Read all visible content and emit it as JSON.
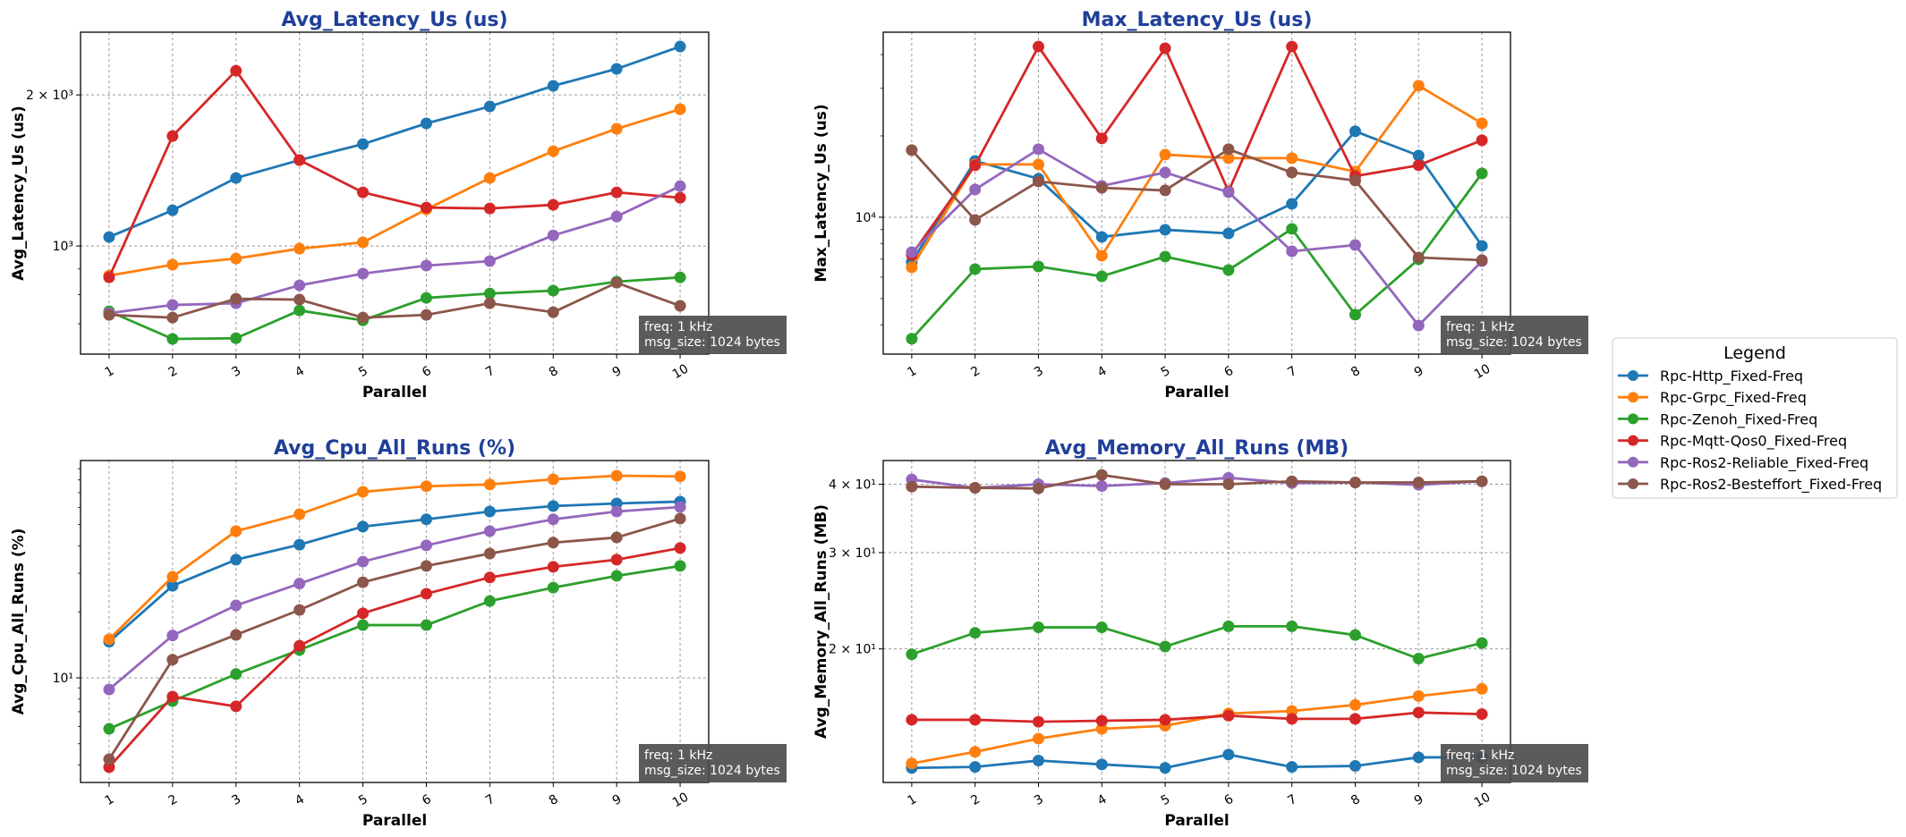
{
  "figure": {
    "legend": {
      "title": "Legend",
      "placement": "right-center"
    },
    "annotation": [
      "freq: 1 kHz",
      "msg_size: 1024 bytes"
    ]
  },
  "series_styles": [
    {
      "name": "Rpc-Http_Fixed-Freq",
      "color": "#1f77b4"
    },
    {
      "name": "Rpc-Grpc_Fixed-Freq",
      "color": "#ff7f0e"
    },
    {
      "name": "Rpc-Zenoh_Fixed-Freq",
      "color": "#2ca02c"
    },
    {
      "name": "Rpc-Mqtt-Qos0_Fixed-Freq",
      "color": "#d62728"
    },
    {
      "name": "Rpc-Ros2-Reliable_Fixed-Freq",
      "color": "#9467bd"
    },
    {
      "name": "Rpc-Ros2-Besteffort_Fixed-Freq",
      "color": "#8c564b"
    }
  ],
  "chart_data": [
    {
      "type": "line",
      "title": "Avg_Latency_Us  (us)",
      "xlabel": "Parallel",
      "ylabel": "Avg_Latency_Us (us)",
      "yscale": "log",
      "ylim": [
        609,
        2667
      ],
      "grid": true,
      "x": [
        1,
        2,
        3,
        4,
        5,
        6,
        7,
        8,
        9,
        10
      ],
      "xtick_labels": [
        "1",
        "2",
        "3",
        "4",
        "5",
        "6",
        "7",
        "8",
        "9",
        "10"
      ],
      "ytick_labels": [
        {
          "value": 1000,
          "label": "10³"
        },
        {
          "value": 2000,
          "label": "2 × 10³"
        }
      ],
      "yminor_ticks": [
        600,
        700,
        800,
        900
      ],
      "series": [
        {
          "name": "Rpc-Http_Fixed-Freq",
          "values": [
            1042,
            1178,
            1366,
            1483,
            1596,
            1755,
            1897,
            2085,
            2254,
            2497
          ]
        },
        {
          "name": "Rpc-Grpc_Fixed-Freq",
          "values": [
            873,
            918,
            944,
            988,
            1017,
            1183,
            1366,
            1545,
            1712,
            1873
          ]
        },
        {
          "name": "Rpc-Zenoh_Fixed-Freq",
          "values": [
            741,
            653,
            655,
            744,
            711,
            788,
            804,
            815,
            849,
            866
          ]
        },
        {
          "name": "Rpc-Mqtt-Qos0_Fixed-Freq",
          "values": [
            866,
            1656,
            2235,
            1483,
            1279,
            1193,
            1188,
            1208,
            1279,
            1248
          ]
        },
        {
          "name": "Rpc-Ros2-Reliable_Fixed-Freq",
          "values": [
            735,
            763,
            769,
            835,
            881,
            914,
            933,
            1050,
            1145,
            1316
          ]
        },
        {
          "name": "Rpc-Ros2-Besteffort_Fixed-Freq",
          "values": [
            729,
            720,
            785,
            782,
            720,
            729,
            769,
            738,
            845,
            760
          ]
        }
      ]
    },
    {
      "type": "line",
      "title": "Max_Latency_Us  (us)",
      "xlabel": "Parallel",
      "ylabel": "Max_Latency_Us (us)",
      "yscale": "log",
      "ylim": [
        3115,
        48400
      ],
      "grid": true,
      "x": [
        1,
        2,
        3,
        4,
        5,
        6,
        7,
        8,
        9,
        10
      ],
      "xtick_labels": [
        "1",
        "2",
        "3",
        "4",
        "5",
        "6",
        "7",
        "8",
        "9",
        "10"
      ],
      "ytick_labels": [
        {
          "value": 10000,
          "label": "10⁴"
        }
      ],
      "yminor_ticks": [
        4000,
        5000,
        6000,
        7000,
        8000,
        9000,
        20000,
        30000,
        40000
      ],
      "series": [
        {
          "name": "Rpc-Http_Fixed-Freq",
          "values": [
            6831,
            16160,
            13880,
            8456,
            8987,
            8716,
            11210,
            20800,
            16910,
            7836
          ]
        },
        {
          "name": "Rpc-Grpc_Fixed-Freq",
          "values": [
            6526,
            15680,
            15680,
            7205,
            17050,
            16540,
            16540,
            14750,
            30680,
            22270
          ]
        },
        {
          "name": "Rpc-Zenoh_Fixed-Freq",
          "values": [
            3548,
            6427,
            6574,
            6046,
            7150,
            6377,
            9056,
            4361,
            6988,
            14530
          ]
        },
        {
          "name": "Rpc-Mqtt-Qos0_Fixed-Freq",
          "values": [
            7261,
            15570,
            42820,
            19580,
            42190,
            12470,
            42820,
            14200,
            15570,
            19270
          ]
        },
        {
          "name": "Rpc-Ros2-Reliable_Fixed-Freq",
          "values": [
            7428,
            12670,
            17850,
            13060,
            14640,
            12380,
            7484,
            7893,
            3975,
            6882
          ]
        },
        {
          "name": "Rpc-Ros2-Besteffort_Fixed-Freq",
          "values": [
            17720,
            9774,
            13570,
            12850,
            12570,
            17850,
            14640,
            13670,
            7094,
            6938
          ]
        }
      ]
    },
    {
      "type": "line",
      "title": "Avg_Cpu_All_Runs  (%)",
      "xlabel": "Parallel",
      "ylabel": "Avg_Cpu_All_Runs (%)",
      "yscale": "log",
      "ylim": [
        3.33,
        98.1
      ],
      "grid": true,
      "x": [
        1,
        2,
        3,
        4,
        5,
        6,
        7,
        8,
        9,
        10
      ],
      "xtick_labels": [
        "1",
        "2",
        "3",
        "4",
        "5",
        "6",
        "7",
        "8",
        "9",
        "10"
      ],
      "ytick_labels": [
        {
          "value": 10,
          "label": "10¹"
        }
      ],
      "yminor_ticks": [
        4,
        5,
        6,
        7,
        8,
        9,
        20,
        30,
        40,
        50,
        60,
        70,
        80,
        90
      ],
      "series": [
        {
          "name": "Rpc-Http_Fixed-Freq",
          "values": [
            14.6,
            26.3,
            34.6,
            40.5,
            49.0,
            52.9,
            57.4,
            60.8,
            62.5,
            63.7
          ]
        },
        {
          "name": "Rpc-Grpc_Fixed-Freq",
          "values": [
            15.0,
            28.9,
            46.7,
            55.8,
            70.6,
            74.9,
            76.3,
            80.5,
            83.6,
            83.0
          ]
        },
        {
          "name": "Rpc-Zenoh_Fixed-Freq",
          "values": [
            5.85,
            7.83,
            10.4,
            13.4,
            17.4,
            17.4,
            22.4,
            25.8,
            29.2,
            32.4
          ]
        },
        {
          "name": "Rpc-Mqtt-Qos0_Fixed-Freq",
          "values": [
            3.91,
            8.21,
            7.41,
            14.0,
            19.7,
            24.2,
            28.7,
            32.1,
            34.6,
            39.1
          ]
        },
        {
          "name": "Rpc-Ros2-Reliable_Fixed-Freq",
          "values": [
            8.85,
            15.6,
            21.4,
            26.9,
            33.9,
            40.2,
            46.7,
            52.9,
            57.4,
            60.2
          ]
        },
        {
          "name": "Rpc-Ros2-Besteffort_Fixed-Freq",
          "values": [
            4.25,
            12.1,
            15.7,
            20.4,
            27.3,
            32.4,
            36.9,
            41.4,
            43.7,
            53.3
          ]
        }
      ]
    },
    {
      "type": "line",
      "title": "Avg_Memory_All_Runs  (MB)",
      "xlabel": "Parallel",
      "ylabel": "Avg_Memory_All_Runs (MB)",
      "yscale": "log",
      "ylim": [
        11.4,
        44.2
      ],
      "grid": true,
      "x": [
        1,
        2,
        3,
        4,
        5,
        6,
        7,
        8,
        9,
        10
      ],
      "xtick_labels": [
        "1",
        "2",
        "3",
        "4",
        "5",
        "6",
        "7",
        "8",
        "9",
        "10"
      ],
      "ytick_labels": [
        {
          "value": 20,
          "label": "2 × 10¹"
        },
        {
          "value": 30,
          "label": "3 × 10¹"
        },
        {
          "value": 40,
          "label": "4 × 10¹"
        }
      ],
      "yminor_ticks": [],
      "series": [
        {
          "name": "Rpc-Http_Fixed-Freq",
          "values": [
            12.12,
            12.17,
            12.5,
            12.3,
            12.12,
            12.82,
            12.17,
            12.22,
            12.67,
            12.67
          ]
        },
        {
          "name": "Rpc-Grpc_Fixed-Freq",
          "values": [
            12.35,
            12.97,
            13.71,
            14.29,
            14.47,
            15.24,
            15.4,
            15.8,
            16.4,
            16.9
          ]
        },
        {
          "name": "Rpc-Zenoh_Fixed-Freq",
          "values": [
            19.55,
            21.4,
            21.9,
            21.9,
            20.2,
            22.0,
            22.0,
            21.2,
            19.2,
            20.5
          ]
        },
        {
          "name": "Rpc-Mqtt-Qos0_Fixed-Freq",
          "values": [
            14.84,
            14.84,
            14.72,
            14.78,
            14.84,
            15.1,
            14.9,
            14.9,
            15.3,
            15.2
          ]
        },
        {
          "name": "Rpc-Ros2-Reliable_Fixed-Freq",
          "values": [
            40.8,
            39.4,
            40.0,
            39.7,
            40.2,
            41.1,
            40.2,
            40.3,
            39.9,
            40.5
          ]
        },
        {
          "name": "Rpc-Ros2-Besteffort_Fixed-Freq",
          "values": [
            39.6,
            39.4,
            39.3,
            41.6,
            40.0,
            40.0,
            40.5,
            40.3,
            40.3,
            40.5
          ]
        }
      ]
    }
  ]
}
